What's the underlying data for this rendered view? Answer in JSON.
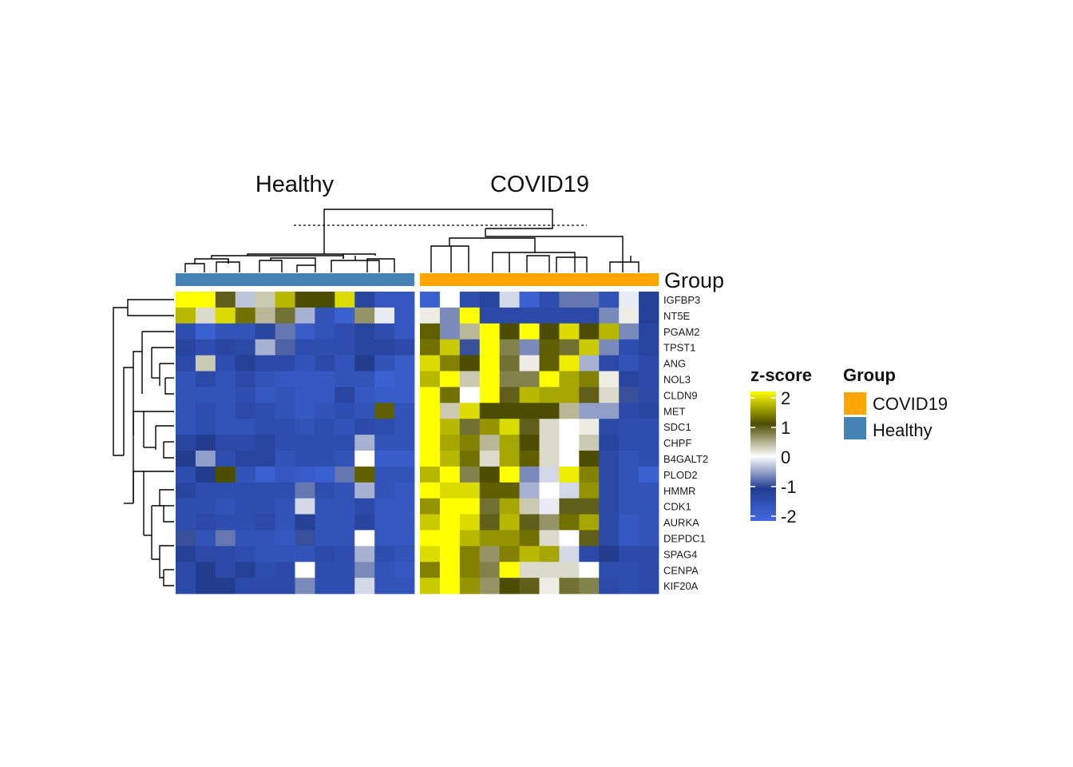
{
  "chart_data": {
    "type": "heatmap",
    "column_groups": [
      {
        "name": "Healthy",
        "color": "#4682B4",
        "n_columns": 12
      },
      {
        "name": "COVID19",
        "color": "#FFA500",
        "n_columns": 12
      }
    ],
    "annotation_title": "Group",
    "rows": [
      "IGFBP3",
      "NT5E",
      "PGAM2",
      "TPST1",
      "ANG",
      "NOL3",
      "CLDN9",
      "MET",
      "SDC1",
      "CHPF",
      "B4GALT2",
      "PLOD2",
      "HMMR",
      "CDK1",
      "AURKA",
      "DEPDC1",
      "SPAG4",
      "CENPA",
      "KIF20A"
    ],
    "values": [
      [
        2.1,
        2.1,
        0.9,
        -0.3,
        0.3,
        1.6,
        1.0,
        1.0,
        1.8,
        -1.2,
        -1.6,
        -1.6,
        -1.8,
        0.0,
        -1.4,
        -1.2,
        -0.2,
        -1.8,
        -1.4,
        -0.7,
        -0.7,
        -1.5,
        -0.1,
        -1.1
      ],
      [
        1.6,
        0.2,
        1.8,
        1.2,
        0.4,
        0.8,
        -0.4,
        -1.5,
        -1.8,
        0.6,
        -0.1,
        -1.6,
        0.1,
        -0.6,
        2.1,
        -1.3,
        -1.3,
        -1.3,
        -1.3,
        -1.3,
        -1.3,
        -0.6,
        0.1,
        -1.1
      ],
      [
        -1.4,
        -1.8,
        -1.5,
        -1.5,
        -1.2,
        -0.7,
        -1.7,
        -1.5,
        -1.4,
        -1.2,
        -1.4,
        -1.6,
        1.1,
        -0.6,
        0.4,
        2.1,
        1.0,
        2.0,
        1.0,
        1.8,
        1.0,
        1.6,
        -0.6,
        -1.2
      ],
      [
        -1.2,
        -1.4,
        -1.2,
        -1.3,
        -0.4,
        -0.8,
        -1.4,
        -1.4,
        -1.4,
        -1.2,
        -1.2,
        -1.3,
        1.2,
        1.7,
        -0.9,
        2.1,
        0.7,
        -0.6,
        1.1,
        0.8,
        1.7,
        -0.6,
        -1.4,
        -1.2
      ],
      [
        -1.3,
        0.3,
        -1.4,
        -1.1,
        -1.3,
        -1.3,
        -1.5,
        -1.3,
        -1.5,
        -1.0,
        -1.5,
        -1.7,
        1.8,
        1.3,
        1.0,
        2.1,
        0.8,
        0.1,
        1.1,
        1.9,
        -0.4,
        -1.3,
        -1.5,
        -1.3
      ],
      [
        -1.5,
        -1.3,
        -1.5,
        -1.3,
        -1.5,
        -1.6,
        -1.6,
        -1.6,
        -1.5,
        -1.5,
        -1.8,
        -1.7,
        1.6,
        2.0,
        0.3,
        2.1,
        0.7,
        0.7,
        2.1,
        1.5,
        1.3,
        0.1,
        -1.2,
        -1.3
      ],
      [
        -1.5,
        -1.5,
        -1.5,
        -1.4,
        -1.6,
        -1.5,
        -1.6,
        -1.6,
        -1.2,
        -1.6,
        -1.7,
        -1.7,
        2.0,
        1.2,
        0.0,
        2.1,
        0.9,
        1.6,
        1.5,
        1.5,
        0.9,
        0.2,
        -0.9,
        -1.3
      ],
      [
        -1.5,
        -1.4,
        -1.5,
        -1.3,
        -1.4,
        -1.5,
        -1.6,
        -1.5,
        -1.4,
        -1.5,
        1.1,
        -1.5,
        2.1,
        0.3,
        1.8,
        1.0,
        1.0,
        1.0,
        1.0,
        0.4,
        -0.5,
        -0.5,
        -1.3,
        -1.2
      ],
      [
        -1.5,
        -1.4,
        -1.5,
        -1.5,
        -1.4,
        -1.4,
        -1.5,
        -1.4,
        -1.5,
        -1.3,
        -1.4,
        -1.5,
        2.1,
        1.6,
        0.8,
        1.4,
        1.8,
        0.9,
        0.2,
        0.0,
        0.1,
        -1.3,
        -1.4,
        -1.4
      ],
      [
        -1.2,
        -1.0,
        -1.3,
        -1.3,
        -1.2,
        -1.4,
        -1.4,
        -1.4,
        -1.4,
        -0.4,
        -1.5,
        -1.5,
        2.1,
        1.5,
        1.3,
        0.4,
        1.5,
        1.0,
        0.2,
        0.0,
        0.3,
        -1.2,
        -1.4,
        -1.4
      ],
      [
        -1.0,
        -0.5,
        -1.4,
        -1.2,
        -1.2,
        -1.5,
        -1.4,
        -1.4,
        -1.5,
        0.0,
        -1.7,
        -1.7,
        2.1,
        1.6,
        1.2,
        0.2,
        1.5,
        1.1,
        0.2,
        0.0,
        1.0,
        -1.3,
        -1.5,
        -1.4
      ],
      [
        -1.4,
        -1.0,
        1.0,
        -1.5,
        -1.8,
        -1.6,
        -1.7,
        -1.8,
        -0.7,
        1.1,
        -1.5,
        -1.5,
        1.6,
        2.1,
        0.7,
        1.0,
        2.1,
        -0.6,
        -0.2,
        1.9,
        1.3,
        -1.3,
        -1.5,
        -1.8
      ],
      [
        -1.2,
        -1.4,
        -1.4,
        -1.4,
        -1.4,
        -1.4,
        -0.7,
        -1.4,
        -1.5,
        -0.4,
        -1.5,
        -1.6,
        2.1,
        1.8,
        1.8,
        1.1,
        1.1,
        -0.4,
        0.0,
        -0.2,
        1.4,
        -1.3,
        -1.5,
        -1.5
      ],
      [
        -1.4,
        -1.4,
        -1.5,
        -1.4,
        -1.4,
        -1.5,
        -0.2,
        -1.5,
        -1.5,
        -1.3,
        -1.6,
        -1.6,
        1.4,
        2.1,
        2.1,
        0.8,
        1.5,
        0.3,
        -0.1,
        0.9,
        0.9,
        -1.3,
        -1.5,
        -1.5
      ],
      [
        -1.4,
        -1.3,
        -1.4,
        -1.4,
        -1.3,
        -1.5,
        -1.1,
        -1.5,
        -1.5,
        -1.2,
        -1.6,
        -1.6,
        1.7,
        2.1,
        1.8,
        0.9,
        1.6,
        0.9,
        0.6,
        1.2,
        1.5,
        -1.3,
        -1.6,
        -1.5
      ],
      [
        -0.9,
        -1.5,
        -0.7,
        -1.5,
        -1.5,
        -1.6,
        -0.9,
        -1.5,
        -1.5,
        0.0,
        -1.6,
        -1.6,
        2.1,
        2.1,
        1.6,
        1.4,
        1.4,
        1.2,
        0.2,
        0.0,
        0.9,
        -1.3,
        -1.6,
        -1.5
      ],
      [
        -1.1,
        -1.3,
        -1.3,
        -1.4,
        -1.5,
        -1.5,
        -1.5,
        -1.3,
        -1.4,
        -0.4,
        -1.4,
        -1.5,
        1.8,
        2.1,
        1.3,
        0.6,
        1.3,
        1.6,
        1.5,
        -0.2,
        -1.3,
        -1.0,
        -1.3,
        -1.3
      ],
      [
        -1.3,
        -1.0,
        -1.3,
        -1.1,
        -1.4,
        -1.3,
        0.0,
        -1.4,
        -1.4,
        -0.6,
        -1.5,
        -1.6,
        1.3,
        2.1,
        1.3,
        0.7,
        2.1,
        0.2,
        0.2,
        0.2,
        0.0,
        -1.4,
        -1.4,
        -1.3
      ],
      [
        -1.3,
        -1.0,
        -1.0,
        -1.3,
        -1.3,
        -1.3,
        -0.6,
        -1.4,
        -1.4,
        -0.2,
        -1.5,
        -1.5,
        1.7,
        2.1,
        1.4,
        0.6,
        1.0,
        0.9,
        0.1,
        0.8,
        0.7,
        -1.3,
        -1.4,
        -1.3
      ]
    ],
    "color_scale": {
      "title": "z-score",
      "breaks": [
        -2,
        -1,
        0,
        1,
        2
      ],
      "tick_labels": [
        "-2",
        "-1",
        "0",
        "1",
        "2"
      ],
      "colors": [
        "#4169E1",
        "#223C8E",
        "#FFFFFF",
        "#4D4D00",
        "#FFFF00"
      ]
    },
    "group_legend": {
      "title": "Group",
      "items": [
        {
          "label": "COVID19",
          "color": "#FFA500"
        },
        {
          "label": "Healthy",
          "color": "#4682B4"
        }
      ]
    }
  }
}
